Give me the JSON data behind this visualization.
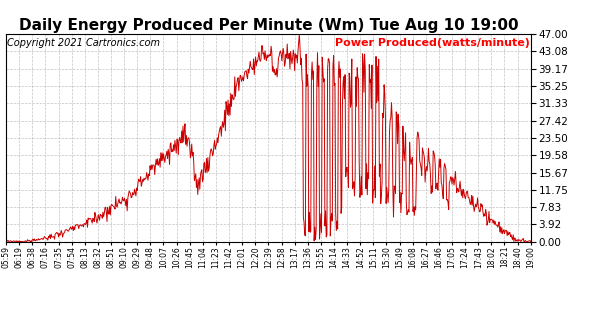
{
  "title": "Daily Energy Produced Per Minute (Wm) Tue Aug 10 19:00",
  "copyright": "Copyright 2021 Cartronics.com",
  "legend_label": "Power Produced(watts/minute)",
  "legend_color": "#ff0000",
  "title_fontsize": 11,
  "copyright_fontsize": 7,
  "legend_fontsize": 8,
  "background_color": "#ffffff",
  "grid_color": "#aaaaaa",
  "line_color": "#cc0000",
  "ymin": 0.0,
  "ymax": 47.0,
  "yticks": [
    0.0,
    3.92,
    7.83,
    11.75,
    15.67,
    19.58,
    23.5,
    27.42,
    31.33,
    35.25,
    39.17,
    43.08,
    47.0
  ],
  "xtick_labels": [
    "05:59",
    "06:19",
    "06:38",
    "07:16",
    "07:35",
    "07:54",
    "08:13",
    "08:32",
    "08:51",
    "09:10",
    "09:29",
    "09:48",
    "10:07",
    "10:26",
    "10:45",
    "11:04",
    "11:23",
    "11:42",
    "12:01",
    "12:20",
    "12:39",
    "12:58",
    "13:17",
    "13:36",
    "13:55",
    "14:14",
    "14:33",
    "14:52",
    "15:11",
    "15:30",
    "15:49",
    "16:08",
    "16:27",
    "16:46",
    "17:05",
    "17:24",
    "17:43",
    "18:02",
    "18:21",
    "18:40",
    "19:00"
  ]
}
